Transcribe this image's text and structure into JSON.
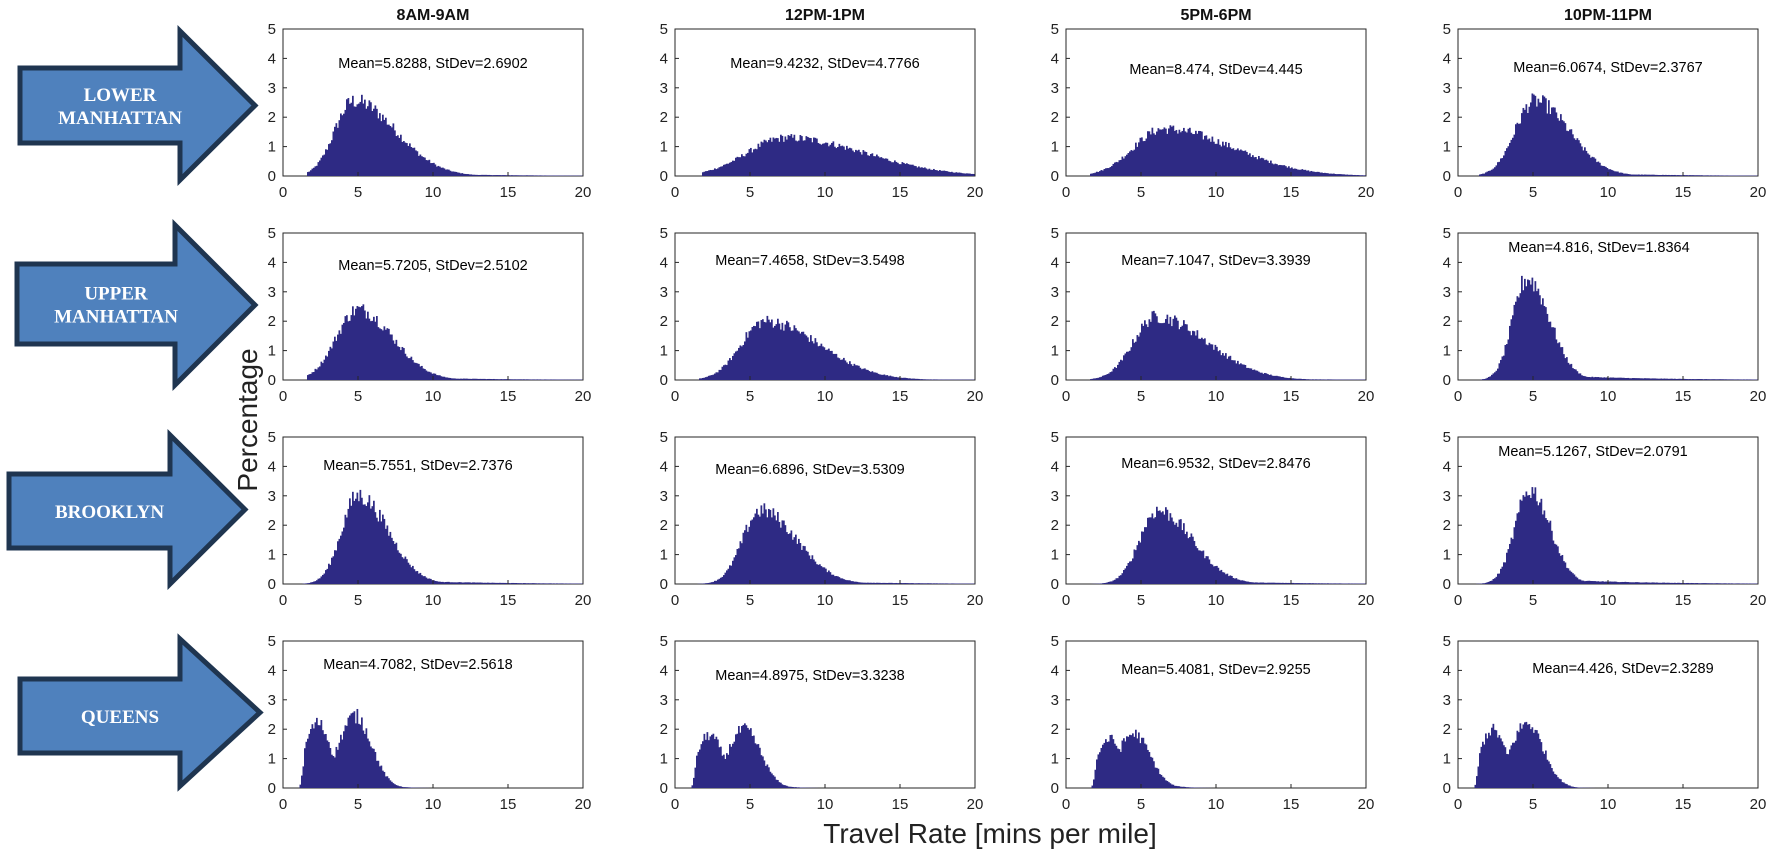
{
  "figure": {
    "xlabel": "Travel Rate [mins per mile]",
    "ylabel": "Percentage",
    "columns": [
      "8AM-9AM",
      "12PM-1PM",
      "5PM-6PM",
      "10PM-11PM"
    ],
    "rows": [
      {
        "label_lines": [
          "LOWER",
          "MANHATTAN"
        ]
      },
      {
        "label_lines": [
          "UPPER",
          "MANHATTAN"
        ]
      },
      {
        "label_lines": [
          "BROOKLYN"
        ]
      },
      {
        "label_lines": [
          "QUEENS"
        ]
      }
    ],
    "colors": {
      "bars": "#2e2a84",
      "arrow_fill": "#4f81bd",
      "arrow_stroke": "#1f3550"
    }
  },
  "chart_data": [
    {
      "type": "bar",
      "row": 0,
      "col": 0,
      "annotation": "Mean=5.8288, StDev=2.6902",
      "xlim": [
        0,
        20
      ],
      "ylim": [
        0,
        5
      ],
      "xticks": [
        0,
        5,
        10,
        15,
        20
      ],
      "yticks": [
        0,
        1,
        2,
        3,
        4,
        5
      ],
      "peak_x": 4.7,
      "peak_y": 2.55,
      "start_x": 1.6,
      "left_sd": 1.25,
      "right_sd": 2.8
    },
    {
      "type": "bar",
      "row": 0,
      "col": 1,
      "annotation": "Mean=9.4232, StDev=4.7766",
      "xlim": [
        0,
        20
      ],
      "ylim": [
        0,
        5
      ],
      "xticks": [
        0,
        5,
        10,
        15,
        20
      ],
      "yticks": [
        0,
        1,
        2,
        3,
        4,
        5
      ],
      "peak_x": 7.4,
      "peak_y": 1.3,
      "start_x": 1.8,
      "left_sd": 2.6,
      "right_sd": 5.2
    },
    {
      "type": "bar",
      "row": 0,
      "col": 2,
      "annotation": "Mean=8.474, StDev=4.445",
      "xlim": [
        0,
        20
      ],
      "ylim": [
        0,
        5
      ],
      "xticks": [
        0,
        5,
        10,
        15,
        20
      ],
      "yticks": [
        0,
        1,
        2,
        3,
        4,
        5
      ],
      "peak_x": 6.5,
      "peak_y": 1.6,
      "start_x": 1.6,
      "left_sd": 2.0,
      "right_sd": 4.6
    },
    {
      "type": "bar",
      "row": 0,
      "col": 3,
      "annotation": "Mean=6.0674, StDev=2.3767",
      "xlim": [
        0,
        20
      ],
      "ylim": [
        0,
        5
      ],
      "xticks": [
        0,
        5,
        10,
        15,
        20
      ],
      "yticks": [
        0,
        1,
        2,
        3,
        4,
        5
      ],
      "peak_x": 5.1,
      "peak_y": 2.55,
      "start_x": 1.4,
      "left_sd": 1.3,
      "right_sd": 2.3
    },
    {
      "type": "bar",
      "row": 1,
      "col": 0,
      "annotation": "Mean=5.7205, StDev=2.5102",
      "xlim": [
        0,
        20
      ],
      "ylim": [
        0,
        5
      ],
      "xticks": [
        0,
        5,
        10,
        15,
        20
      ],
      "yticks": [
        0,
        1,
        2,
        3,
        4,
        5
      ],
      "peak_x": 5.0,
      "peak_y": 2.4,
      "start_x": 1.6,
      "left_sd": 1.45,
      "right_sd": 2.3
    },
    {
      "type": "bar",
      "row": 1,
      "col": 1,
      "annotation": "Mean=7.4658, StDev=3.5498",
      "xlim": [
        0,
        20
      ],
      "ylim": [
        0,
        5
      ],
      "xticks": [
        0,
        5,
        10,
        15,
        20
      ],
      "yticks": [
        0,
        1,
        2,
        3,
        4,
        5
      ],
      "peak_x": 6.0,
      "peak_y": 2.0,
      "start_x": 1.6,
      "left_sd": 1.6,
      "right_sd": 3.6
    },
    {
      "type": "bar",
      "row": 1,
      "col": 2,
      "annotation": "Mean=7.1047, StDev=3.3939",
      "xlim": [
        0,
        20
      ],
      "ylim": [
        0,
        5
      ],
      "xticks": [
        0,
        5,
        10,
        15,
        20
      ],
      "yticks": [
        0,
        1,
        2,
        3,
        4,
        5
      ],
      "peak_x": 6.0,
      "peak_y": 2.15,
      "start_x": 1.6,
      "left_sd": 1.5,
      "right_sd": 3.4
    },
    {
      "type": "bar",
      "row": 1,
      "col": 3,
      "annotation": "Mean=4.816, StDev=1.8364",
      "xlim": [
        0,
        20
      ],
      "ylim": [
        0,
        5
      ],
      "xticks": [
        0,
        5,
        10,
        15,
        20
      ],
      "yticks": [
        0,
        1,
        2,
        3,
        4,
        5
      ],
      "peak_x": 4.6,
      "peak_y": 3.45,
      "start_x": 1.5,
      "left_sd": 0.95,
      "right_sd": 1.5
    },
    {
      "type": "bar",
      "row": 2,
      "col": 0,
      "annotation": "Mean=5.7551, StDev=2.7376",
      "xlim": [
        0,
        20
      ],
      "ylim": [
        0,
        5
      ],
      "xticks": [
        0,
        5,
        10,
        15,
        20
      ],
      "yticks": [
        0,
        1,
        2,
        3,
        4,
        5
      ],
      "peak_x": 5.0,
      "peak_y": 3.0,
      "start_x": 1.3,
      "left_sd": 1.1,
      "right_sd": 2.0
    },
    {
      "type": "bar",
      "row": 2,
      "col": 1,
      "annotation": "Mean=6.6896, StDev=3.5309",
      "xlim": [
        0,
        20
      ],
      "ylim": [
        0,
        5
      ],
      "xticks": [
        0,
        5,
        10,
        15,
        20
      ],
      "yticks": [
        0,
        1,
        2,
        3,
        4,
        5
      ],
      "peak_x": 5.7,
      "peak_y": 2.5,
      "start_x": 1.5,
      "left_sd": 1.2,
      "right_sd": 2.4
    },
    {
      "type": "bar",
      "row": 2,
      "col": 2,
      "annotation": "Mean=6.9532, StDev=2.8476",
      "xlim": [
        0,
        20
      ],
      "ylim": [
        0,
        5
      ],
      "xticks": [
        0,
        5,
        10,
        15,
        20
      ],
      "yticks": [
        0,
        1,
        2,
        3,
        4,
        5
      ],
      "peak_x": 6.1,
      "peak_y": 2.5,
      "start_x": 1.5,
      "left_sd": 1.2,
      "right_sd": 2.3
    },
    {
      "type": "bar",
      "row": 2,
      "col": 3,
      "annotation": "Mean=5.1267, StDev=2.0791",
      "xlim": [
        0,
        20
      ],
      "ylim": [
        0,
        5
      ],
      "xticks": [
        0,
        5,
        10,
        15,
        20
      ],
      "yticks": [
        0,
        1,
        2,
        3,
        4,
        5
      ],
      "peak_x": 4.8,
      "peak_y": 3.2,
      "start_x": 1.2,
      "left_sd": 1.0,
      "right_sd": 1.35
    },
    {
      "type": "bar",
      "row": 3,
      "col": 0,
      "annotation": "Mean=4.7082, StDev=2.5618",
      "xlim": [
        0,
        20
      ],
      "ylim": [
        0,
        5
      ],
      "xticks": [
        0,
        5,
        10,
        15,
        20
      ],
      "yticks": [
        0,
        1,
        2,
        3,
        4,
        5
      ],
      "peak_x": 4.8,
      "peak_y": 2.45,
      "start_x": 1.1,
      "left_sd": 2.0,
      "right_sd": 1.5
    },
    {
      "type": "bar",
      "row": 3,
      "col": 1,
      "annotation": "Mean=4.8975, StDev=3.3238",
      "xlim": [
        0,
        20
      ],
      "ylim": [
        0,
        5
      ],
      "xticks": [
        0,
        5,
        10,
        15,
        20
      ],
      "yticks": [
        0,
        1,
        2,
        3,
        4,
        5
      ],
      "peak_x": 4.6,
      "peak_y": 2.0,
      "start_x": 1.1,
      "left_sd": 2.1,
      "right_sd": 1.7
    },
    {
      "type": "bar",
      "row": 3,
      "col": 2,
      "annotation": "Mean=5.4081, StDev=2.9255",
      "xlim": [
        0,
        20
      ],
      "ylim": [
        0,
        5
      ],
      "xticks": [
        0,
        5,
        10,
        15,
        20
      ],
      "yticks": [
        0,
        1,
        2,
        3,
        4,
        5
      ],
      "peak_x": 4.5,
      "peak_y": 1.85,
      "start_x": 1.7,
      "left_sd": 2.2,
      "right_sd": 2.0
    },
    {
      "type": "bar",
      "row": 3,
      "col": 3,
      "annotation": "Mean=4.426, StDev=2.3289",
      "xlim": [
        0,
        20
      ],
      "ylim": [
        0,
        5
      ],
      "xticks": [
        0,
        5,
        10,
        15,
        20
      ],
      "yticks": [
        0,
        1,
        2,
        3,
        4,
        5
      ],
      "peak_x": 4.6,
      "peak_y": 2.2,
      "start_x": 1.1,
      "left_sd": 2.0,
      "right_sd": 1.3
    }
  ]
}
